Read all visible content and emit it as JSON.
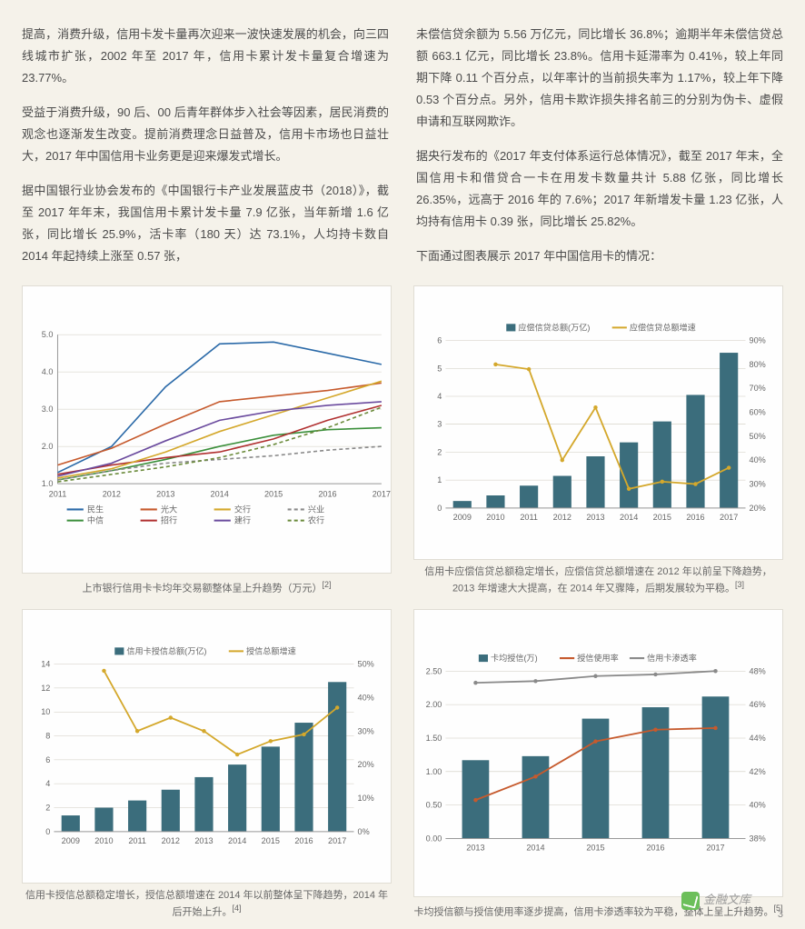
{
  "text": {
    "left": {
      "p1": "提高，消费升级，信用卡发卡量再次迎来一波快速发展的机会，向三四线城市扩张，2002 年至 2017 年，信用卡累计发卡量复合增速为 23.77%。",
      "p2": "受益于消费升级，90 后、00 后青年群体步入社会等因素，居民消费的观念也逐渐发生改变。提前消费理念日益普及，信用卡市场也日益壮大，2017 年中国信用卡业务更是迎来爆发式增长。",
      "p3": "据中国银行业协会发布的《中国银行卡产业发展蓝皮书（2018）》，截至 2017 年年末，我国信用卡累计发卡量 7.9 亿张，当年新增 1.6 亿张，同比增长 25.9%，活卡率（180 天）达 73.1%，人均持卡数自 2014 年起持续上涨至 0.57 张，"
    },
    "right": {
      "p1": "未偿信贷余额为 5.56 万亿元，同比增长 36.8%；逾期半年未偿信贷总额 663.1 亿元，同比增长 23.8%。信用卡延滞率为 0.41%，较上年同期下降 0.11 个百分点，以年率计的当前损失率为 1.17%，较上年下降 0.53 个百分点。另外，信用卡欺诈损失排名前三的分别为伪卡、虚假申请和互联网欺诈。",
      "p2": "据央行发布的《2017 年支付体系运行总体情况》，截至 2017 年末，全国信用卡和借贷合一卡在用发卡数量共计 5.88 亿张，同比增长 26.35%，远高于 2016 年的 7.6%；2017 年新增发卡量 1.23 亿张，人均持有信用卡 0.39 张，同比增长 25.82%。",
      "p3": "下面通过图表展示 2017 年中国信用卡的情况："
    }
  },
  "common": {
    "background_color": "#fefefe",
    "grid_color": "#cfcabf",
    "axis_color": "#999999",
    "tick_fontsize": 9,
    "caption_fontsize": 11
  },
  "chart1": {
    "type": "line",
    "caption": "上市银行信用卡卡均年交易额整体呈上升趋势（万元）",
    "caption_sup": "[2]",
    "x_categories": [
      "2011",
      "2012",
      "2013",
      "2014",
      "2015",
      "2016",
      "2017"
    ],
    "ylim": [
      1.0,
      5.0
    ],
    "ytick_step": 1.0,
    "series": [
      {
        "name": "民生",
        "color": "#2b6aa8",
        "values": [
          1.3,
          2.0,
          3.6,
          4.75,
          4.8,
          4.5,
          4.2
        ]
      },
      {
        "name": "中信",
        "color": "#3b8f3b",
        "values": [
          1.1,
          1.35,
          1.65,
          2.0,
          2.3,
          2.45,
          2.5
        ]
      },
      {
        "name": "光大",
        "color": "#c65a2d",
        "values": [
          1.5,
          1.95,
          2.6,
          3.2,
          3.35,
          3.5,
          3.7
        ]
      },
      {
        "name": "招行",
        "color": "#b03030",
        "values": [
          1.25,
          1.5,
          1.7,
          1.85,
          2.2,
          2.7,
          3.1
        ]
      },
      {
        "name": "交行",
        "color": "#d4a82c",
        "values": [
          1.15,
          1.4,
          1.85,
          2.4,
          2.85,
          3.3,
          3.75
        ]
      },
      {
        "name": "建行",
        "color": "#6b4b9e",
        "values": [
          1.2,
          1.55,
          2.15,
          2.7,
          2.95,
          3.1,
          3.2
        ]
      },
      {
        "name": "兴业",
        "color": "#8a8a8a",
        "values": [
          1.1,
          1.35,
          1.55,
          1.65,
          1.75,
          1.9,
          2.0
        ],
        "dash": "4,3"
      },
      {
        "name": "农行",
        "color": "#6b8b3b",
        "values": [
          1.05,
          1.25,
          1.45,
          1.7,
          2.05,
          2.5,
          3.05
        ],
        "dash": "4,3"
      }
    ],
    "line_width": 1.6
  },
  "chart2": {
    "type": "bar-line",
    "caption": "信用卡应偿信贷总额稳定增长，应偿信贷总额增速在 2012 年以前呈下降趋势，2013 年增速大大提高，在 2014 年又骤降，后期发展较为平稳。",
    "caption_sup": "[3]",
    "legend": {
      "bar": "应偿信贷总额(万亿)",
      "line": "应偿信贷总额增速"
    },
    "x_categories": [
      "2009",
      "2010",
      "2011",
      "2012",
      "2013",
      "2014",
      "2015",
      "2016",
      "2017"
    ],
    "ylim_left": [
      0,
      6
    ],
    "ytick_left": 1,
    "ylim_right": [
      20,
      90
    ],
    "ytick_right": 10,
    "bar_color": "#3b6d7c",
    "bar_width": 0.55,
    "line_color": "#d4a82c",
    "line_width": 1.8,
    "bar_values": [
      0.25,
      0.45,
      0.8,
      1.15,
      1.85,
      2.35,
      3.1,
      4.05,
      5.56
    ],
    "line_values": [
      null,
      80,
      78,
      40,
      62,
      28,
      31,
      30,
      36.8
    ]
  },
  "chart3": {
    "type": "bar-line",
    "caption": "信用卡授信总额稳定增长，授信总额增速在 2014 年以前整体呈下降趋势，2014 年后开始上升。",
    "caption_sup": "[4]",
    "legend": {
      "bar": "信用卡授信总额(万亿)",
      "line": "授信总额增速"
    },
    "x_categories": [
      "2009",
      "2010",
      "2011",
      "2012",
      "2013",
      "2014",
      "2015",
      "2016",
      "2017"
    ],
    "ylim_left": [
      0,
      14
    ],
    "ytick_left": 2,
    "ylim_right": [
      0,
      50
    ],
    "ytick_right": 10,
    "bar_color": "#3b6d7c",
    "bar_width": 0.55,
    "line_color": "#d4a82c",
    "line_width": 1.8,
    "bar_values": [
      1.35,
      2.0,
      2.6,
      3.5,
      4.55,
      5.6,
      7.1,
      9.1,
      12.5
    ],
    "line_values": [
      null,
      48,
      30,
      34,
      30,
      23,
      27,
      29,
      37
    ]
  },
  "chart4": {
    "type": "bar-2line",
    "caption": "卡均授信额与授信使用率逐步提高，信用卡渗透率较为平稳，整体上呈上升趋势。",
    "caption_sup": "[5]",
    "legend": {
      "bar": "卡均授信(万)",
      "l1": "授信使用率",
      "l2": "信用卡渗透率"
    },
    "x_categories": [
      "2013",
      "2014",
      "2015",
      "2016",
      "2017"
    ],
    "ylim_left": [
      0,
      2.5
    ],
    "ytick_left": 0.5,
    "ylim_right": [
      38,
      48
    ],
    "ytick_right": 2,
    "bar_color": "#3b6d7c",
    "bar_width": 0.45,
    "l1_color": "#c65a2d",
    "l2_color": "#8a8a8a",
    "line_width": 1.8,
    "bar_values": [
      1.17,
      1.23,
      1.79,
      1.96,
      2.12
    ],
    "l1_values": [
      40.3,
      41.7,
      43.8,
      44.5,
      44.6
    ],
    "l2_values": [
      47.3,
      47.4,
      47.7,
      47.8,
      48.0
    ]
  },
  "page_number": "3",
  "watermark": "金融文库"
}
